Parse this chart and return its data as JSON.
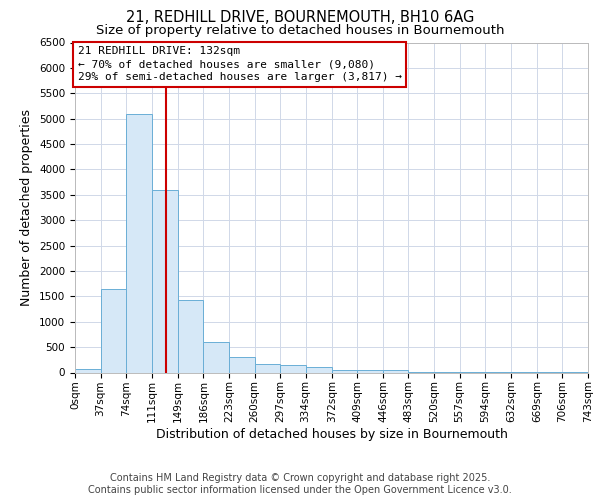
{
  "title_line1": "21, REDHILL DRIVE, BOURNEMOUTH, BH10 6AG",
  "title_line2": "Size of property relative to detached houses in Bournemouth",
  "xlabel": "Distribution of detached houses by size in Bournemouth",
  "ylabel": "Number of detached properties",
  "bins": [
    0,
    37,
    74,
    111,
    149,
    186,
    223,
    260,
    297,
    334,
    372,
    409,
    446,
    483,
    520,
    557,
    594,
    632,
    669,
    706,
    743
  ],
  "counts": [
    75,
    1650,
    5100,
    3600,
    1430,
    610,
    310,
    160,
    150,
    100,
    50,
    40,
    50,
    5,
    5,
    3,
    2,
    2,
    1,
    1
  ],
  "bar_facecolor": "#d6e8f7",
  "bar_edgecolor": "#6aaed6",
  "property_size": 132,
  "vline_color": "#cc0000",
  "annotation_text": "21 REDHILL DRIVE: 132sqm\n← 70% of detached houses are smaller (9,080)\n29% of semi-detached houses are larger (3,817) →",
  "annotation_box_edgecolor": "#cc0000",
  "ylim": [
    0,
    6500
  ],
  "xlim": [
    0,
    743
  ],
  "yticks": [
    0,
    500,
    1000,
    1500,
    2000,
    2500,
    3000,
    3500,
    4000,
    4500,
    5000,
    5500,
    6000,
    6500
  ],
  "footer_line1": "Contains HM Land Registry data © Crown copyright and database right 2025.",
  "footer_line2": "Contains public sector information licensed under the Open Government Licence v3.0.",
  "background_color": "#ffffff",
  "grid_color": "#d0d8e8",
  "title_fontsize": 10.5,
  "subtitle_fontsize": 9.5,
  "axis_label_fontsize": 9,
  "tick_fontsize": 7.5,
  "footer_fontsize": 7,
  "annot_fontsize": 8
}
